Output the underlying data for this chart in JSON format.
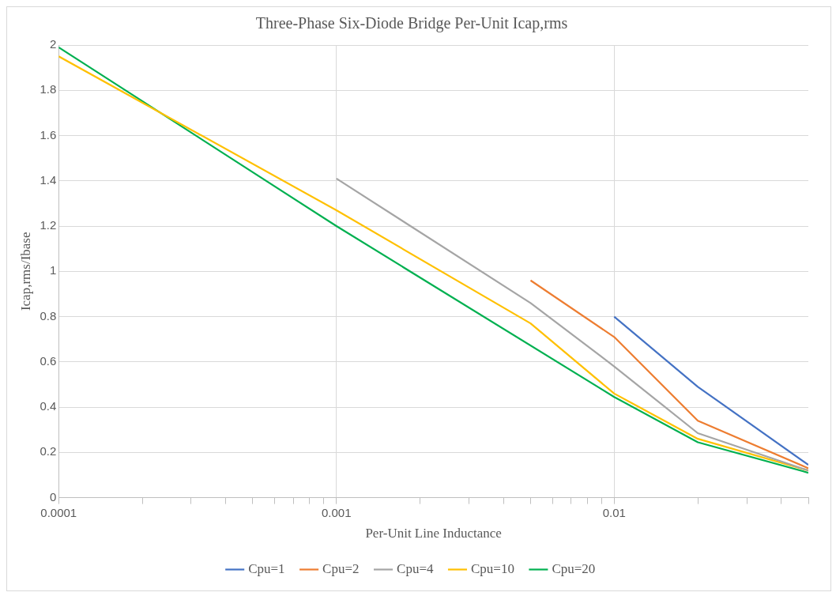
{
  "chart_data": {
    "type": "line",
    "title": "Three-Phase Six-Diode Bridge Per-Unit Icap,rms",
    "xlabel": "Per-Unit Line Inductance",
    "ylabel": "Icap,rms/Ibase",
    "log": "x",
    "grid": true,
    "legend": "bottom",
    "marker": "none",
    "line_style": "solid",
    "xlim": [
      0.0001,
      0.05
    ],
    "ylim": [
      0,
      2
    ],
    "xticks": [
      0.0001,
      {
        "value": 0.0002,
        "label": null
      },
      {
        "value": 0.0003,
        "label": null
      },
      {
        "value": 0.0004,
        "label": null
      },
      {
        "value": 0.0005,
        "label": null
      },
      {
        "value": 0.0006,
        "label": null
      },
      {
        "value": 0.0007,
        "label": null
      },
      {
        "value": 0.0008,
        "label": null
      },
      {
        "value": 0.0009,
        "label": null
      },
      0.001,
      {
        "value": 0.002,
        "label": null
      },
      {
        "value": 0.003,
        "label": null
      },
      {
        "value": 0.004,
        "label": null
      },
      {
        "value": 0.005,
        "label": null
      },
      {
        "value": 0.006,
        "label": null
      },
      {
        "value": 0.007,
        "label": null
      },
      {
        "value": 0.008,
        "label": null
      },
      {
        "value": 0.009,
        "label": null
      },
      0.01,
      {
        "value": 0.02,
        "label": null
      },
      {
        "value": 0.03,
        "label": null
      },
      {
        "value": 0.04,
        "label": null
      },
      {
        "value": 0.05,
        "label": null
      }
    ],
    "yticks": [
      0,
      0.2,
      0.4,
      0.6,
      0.8,
      1,
      1.2,
      1.4,
      1.6,
      1.8,
      2
    ],
    "series": [
      {
        "name": "Cpu=1",
        "color": "#4472c4",
        "x": [
          0.01,
          0.02,
          0.05
        ],
        "values": [
          0.8,
          0.49,
          0.145
        ]
      },
      {
        "name": "Cpu=2",
        "color": "#ed7d31",
        "x": [
          0.005,
          0.01,
          0.02,
          0.05
        ],
        "values": [
          0.96,
          0.71,
          0.34,
          0.13
        ]
      },
      {
        "name": "Cpu=4",
        "color": "#a5a5a5",
        "x": [
          0.001,
          0.005,
          0.01,
          0.02,
          0.05
        ],
        "values": [
          1.41,
          0.86,
          0.58,
          0.285,
          0.12
        ]
      },
      {
        "name": "Cpu=10",
        "color": "#ffc000",
        "x": [
          0.0001,
          0.001,
          0.005,
          0.01,
          0.02,
          0.05
        ],
        "values": [
          1.95,
          1.27,
          0.77,
          0.46,
          0.26,
          0.12
        ]
      },
      {
        "name": "Cpu=20",
        "color": "#00b050",
        "x": [
          0.0001,
          0.001,
          0.01,
          0.02,
          0.05
        ],
        "values": [
          1.99,
          1.2,
          0.445,
          0.245,
          0.11
        ]
      }
    ]
  }
}
